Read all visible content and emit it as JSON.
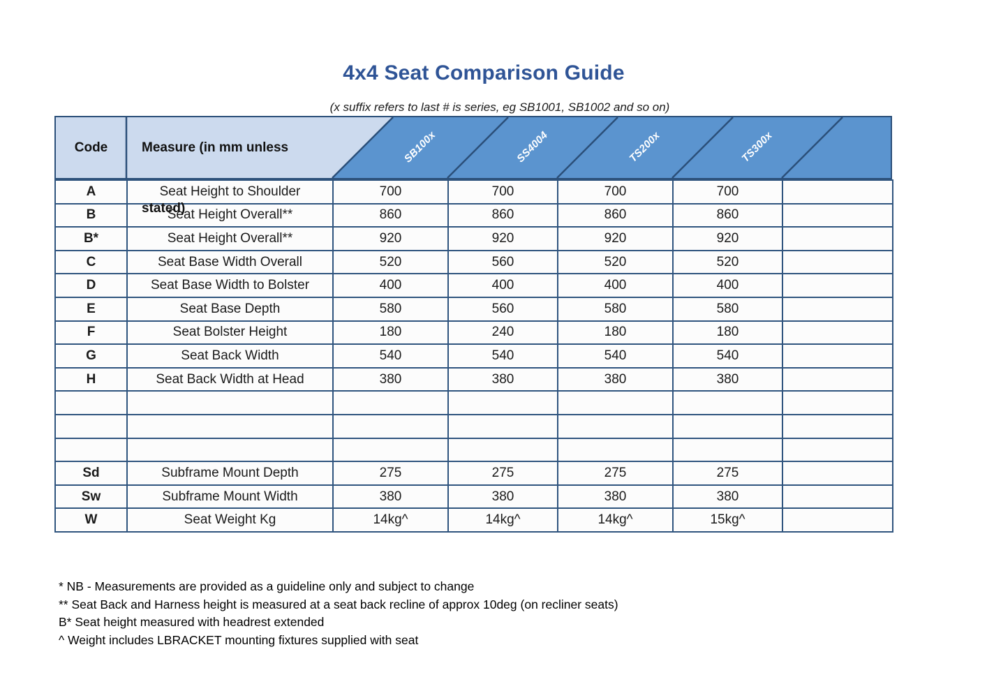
{
  "page": {
    "title": "4x4 Seat Comparison Guide",
    "subtitle": "(x suffix refers to last # is series, eg SB1001, SB1002 and so on)"
  },
  "table": {
    "header": {
      "code": "Code",
      "measure": "Measure (in mm unless stated)",
      "products": [
        "SB100x",
        "SS4004",
        "TS200x",
        "TS300x"
      ],
      "extra_column_label": ""
    },
    "rows": [
      {
        "code": "A",
        "measure": "Seat Height to Shoulder",
        "values": [
          "700",
          "700",
          "700",
          "700",
          ""
        ]
      },
      {
        "code": "B",
        "measure": "Seat Height Overall**",
        "values": [
          "860",
          "860",
          "860",
          "860",
          ""
        ]
      },
      {
        "code": "B*",
        "measure": "Seat Height Overall**",
        "values": [
          "920",
          "920",
          "920",
          "920",
          ""
        ]
      },
      {
        "code": "C",
        "measure": "Seat Base Width Overall",
        "values": [
          "520",
          "560",
          "520",
          "520",
          ""
        ]
      },
      {
        "code": "D",
        "measure": "Seat Base Width to Bolster",
        "values": [
          "400",
          "400",
          "400",
          "400",
          ""
        ]
      },
      {
        "code": "E",
        "measure": "Seat Base Depth",
        "values": [
          "580",
          "560",
          "580",
          "580",
          ""
        ]
      },
      {
        "code": "F",
        "measure": "Seat Bolster Height",
        "values": [
          "180",
          "240",
          "180",
          "180",
          ""
        ]
      },
      {
        "code": "G",
        "measure": "Seat Back Width",
        "values": [
          "540",
          "540",
          "540",
          "540",
          ""
        ]
      },
      {
        "code": "H",
        "measure": "Seat Back Width at Head",
        "values": [
          "380",
          "380",
          "380",
          "380",
          ""
        ]
      },
      {
        "code": "",
        "measure": "",
        "values": [
          "",
          "",
          "",
          "",
          ""
        ]
      },
      {
        "code": "",
        "measure": "",
        "values": [
          "",
          "",
          "",
          "",
          ""
        ]
      },
      {
        "code": "",
        "measure": "",
        "values": [
          "",
          "",
          "",
          "",
          ""
        ]
      },
      {
        "code": "Sd",
        "measure": "Subframe Mount Depth",
        "values": [
          "275",
          "275",
          "275",
          "275",
          ""
        ]
      },
      {
        "code": "Sw",
        "measure": "Subframe Mount Width",
        "values": [
          "380",
          "380",
          "380",
          "380",
          ""
        ]
      },
      {
        "code": "W",
        "measure": "Seat Weight Kg",
        "values": [
          "14kg^",
          "14kg^",
          "14kg^",
          "15kg^",
          ""
        ]
      }
    ]
  },
  "footnotes": [
    "* NB - Measurements are provided as a guideline only and subject to change",
    "** Seat Back and Harness height is measured at a seat back recline of approx 10deg (on recliner seats)",
    "B* Seat height measured with headrest extended",
    "^ Weight includes LBRACKET mounting fixtures supplied with seat"
  ],
  "colors": {
    "title_blue": "#2f5496",
    "header_light_blue": "#ccdaee",
    "header_dark_blue": "#5b94cf",
    "grid_border": "#2b4f79"
  }
}
